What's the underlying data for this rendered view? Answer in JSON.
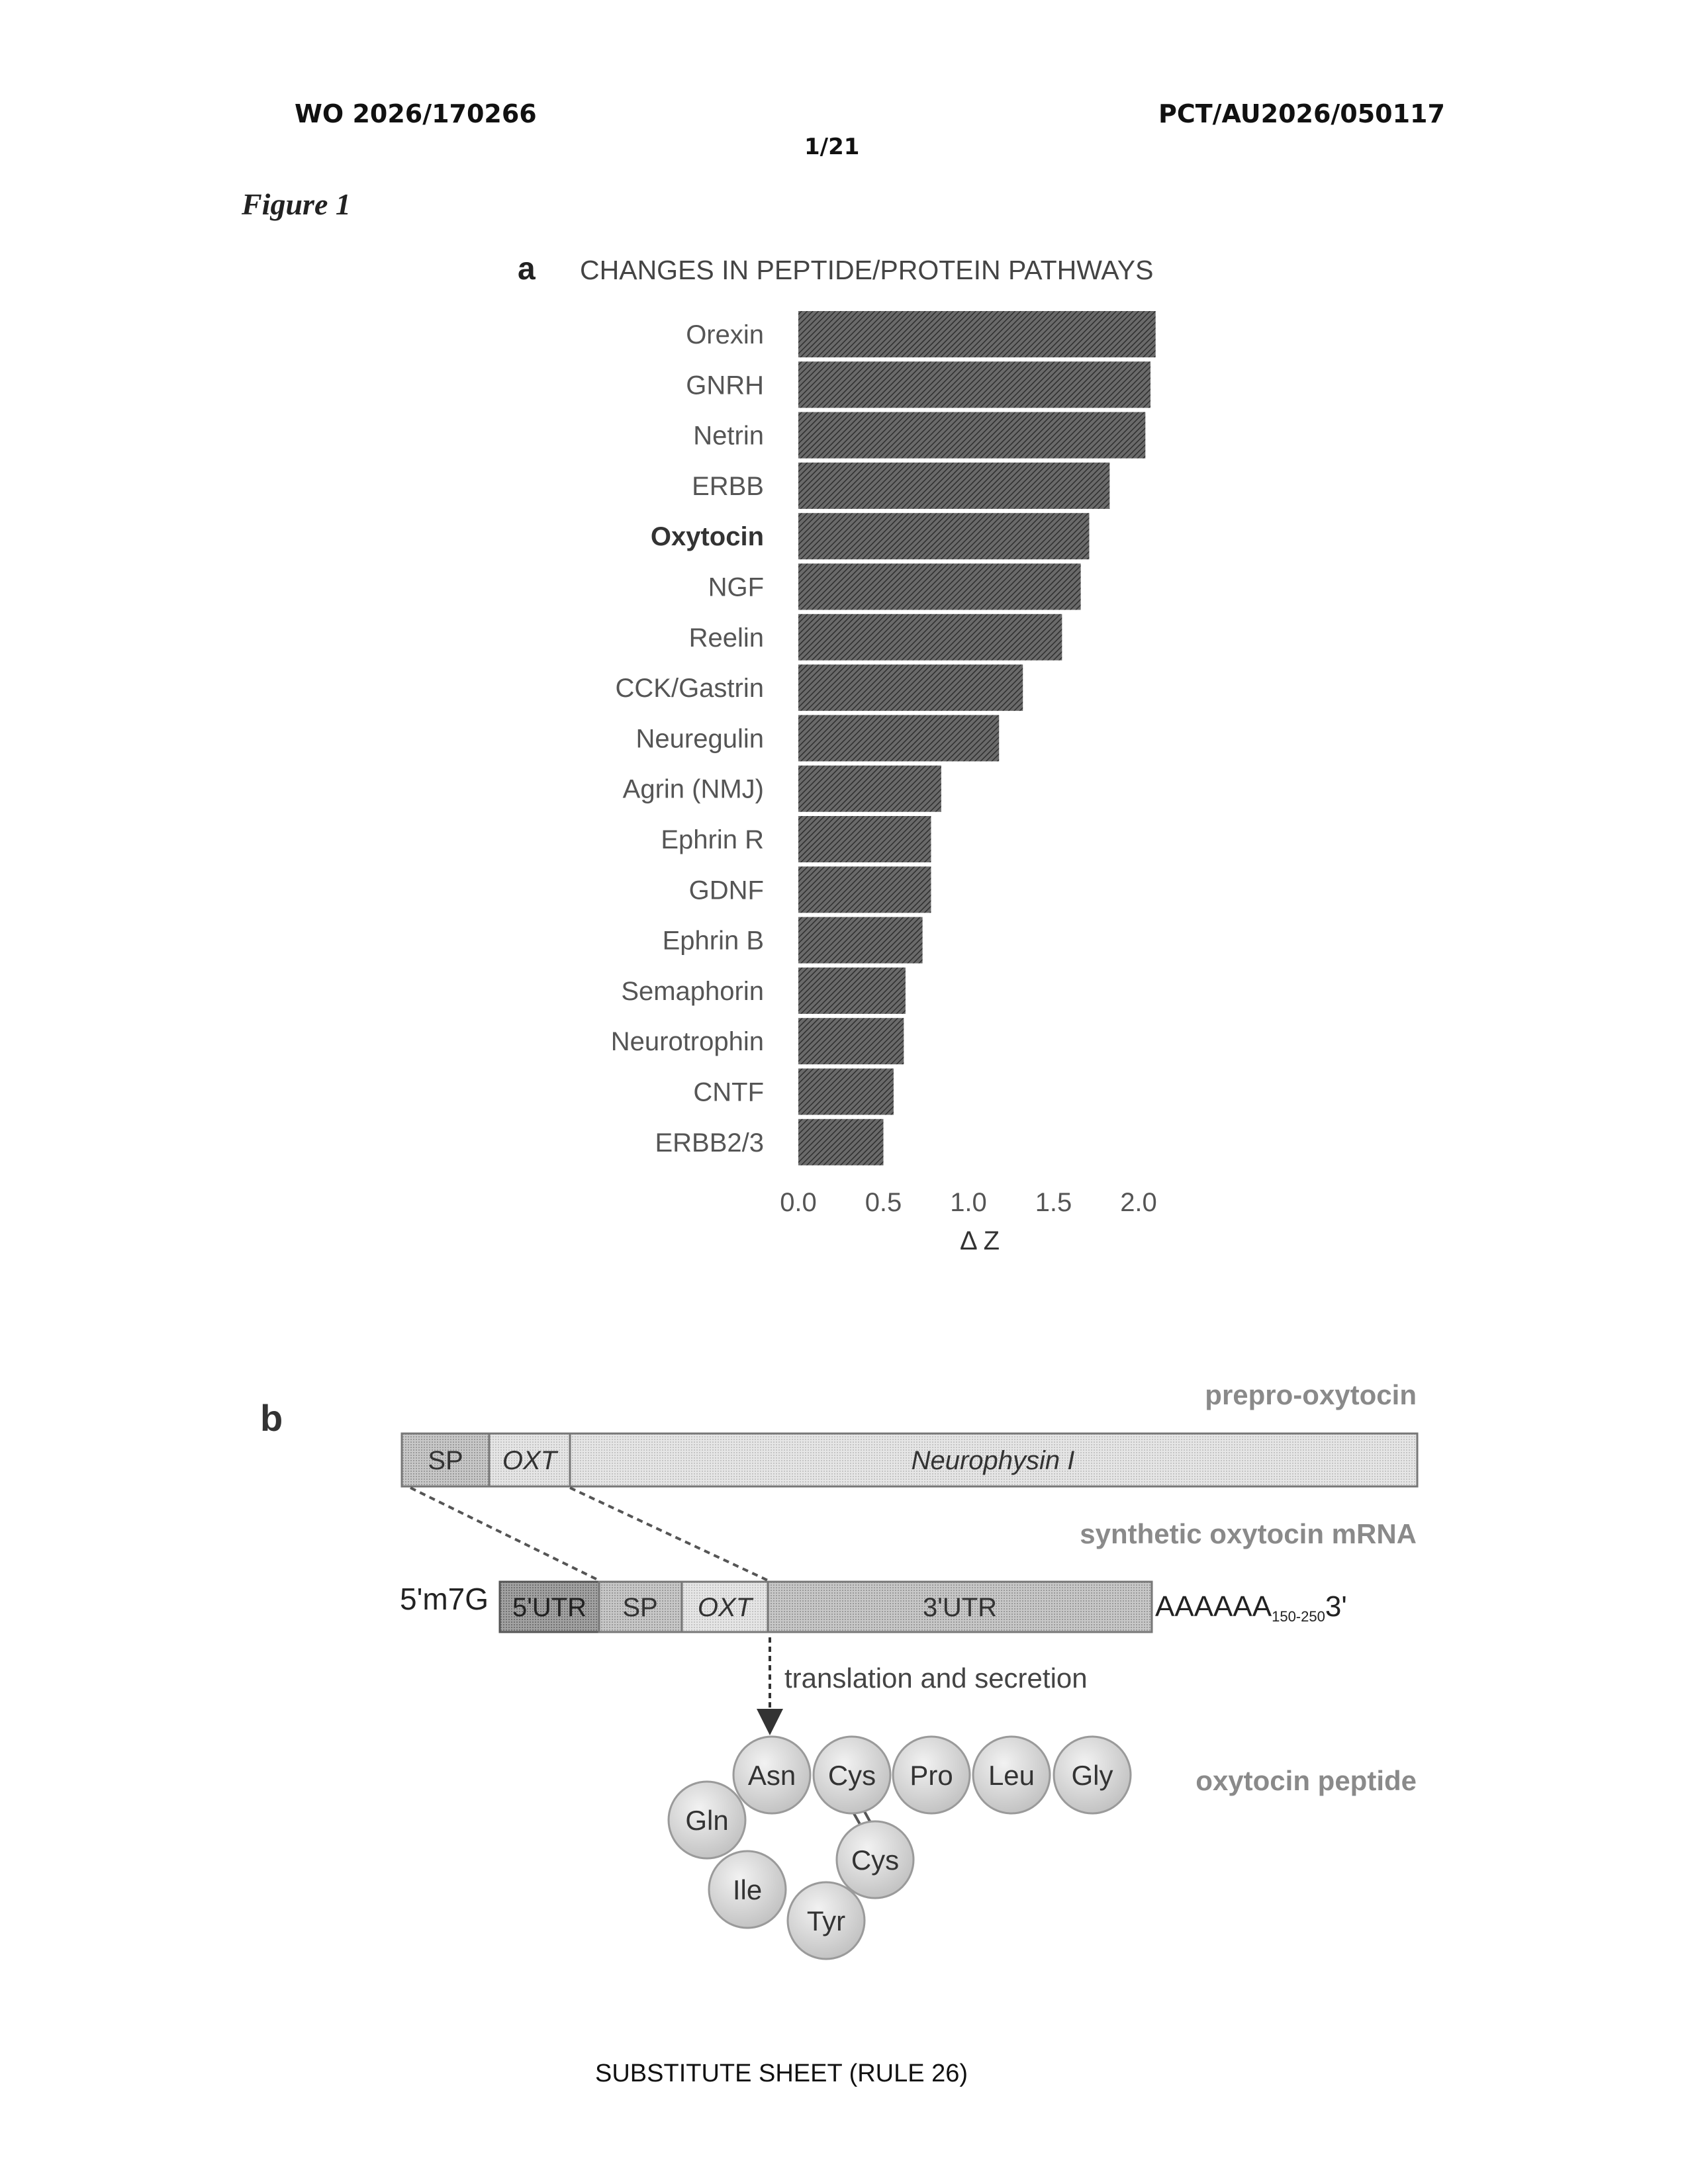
{
  "header": {
    "left": "WO 2026/170266",
    "right": "PCT/AU2026/050117",
    "page": "1/21"
  },
  "figure_label": "Figure 1",
  "panel_a": {
    "letter": "a",
    "title": "CHANGES IN PEPTIDE/PROTEIN PATHWAYS"
  },
  "chart_data": {
    "type": "bar",
    "orientation": "horizontal",
    "title": "CHANGES IN PEPTIDE/PROTEIN PATHWAYS",
    "xlabel": "Δ Z",
    "ylabel": "",
    "xlim": [
      0,
      2.1
    ],
    "xticks": [
      "0.0",
      "0.5",
      "1.0",
      "1.5",
      "2.0"
    ],
    "categories": [
      "Orexin",
      "GNRH",
      "Netrin",
      "ERBB",
      "Oxytocin",
      "NGF",
      "Reelin",
      "CCK/Gastrin",
      "Neuregulin",
      "Agrin (NMJ)",
      "Ephrin R",
      "GDNF",
      "Ephrin B",
      "Semaphorin",
      "Neurotrophin",
      "CNTF",
      "ERBB2/3"
    ],
    "values": [
      2.1,
      2.07,
      2.04,
      1.83,
      1.71,
      1.66,
      1.55,
      1.32,
      1.18,
      0.84,
      0.78,
      0.78,
      0.73,
      0.63,
      0.62,
      0.56,
      0.5
    ],
    "highlight": "Oxytocin",
    "bar_color": "#555555",
    "grid": false
  },
  "panel_b": {
    "letter": "b",
    "prepro_label": "prepro-oxytocin",
    "prepro_segments": [
      "SP",
      "OXT",
      "Neurophysin I"
    ],
    "mrna_label": "synthetic oxytocin mRNA",
    "cap": "5'm7G",
    "mrna_segments": [
      "5'UTR",
      "SP",
      "OXT",
      "3'UTR"
    ],
    "polyA": "AAAAAA",
    "polyA_sub": "150-250",
    "three_prime": "3'",
    "arrow_label": "translation and secretion",
    "peptide_label": "oxytocin peptide",
    "residues": [
      "Asn",
      "Cys",
      "Pro",
      "Leu",
      "Gly",
      "Gln",
      "Cys",
      "Ile",
      "Tyr"
    ]
  },
  "footer": "SUBSTITUTE SHEET (RULE 26)"
}
